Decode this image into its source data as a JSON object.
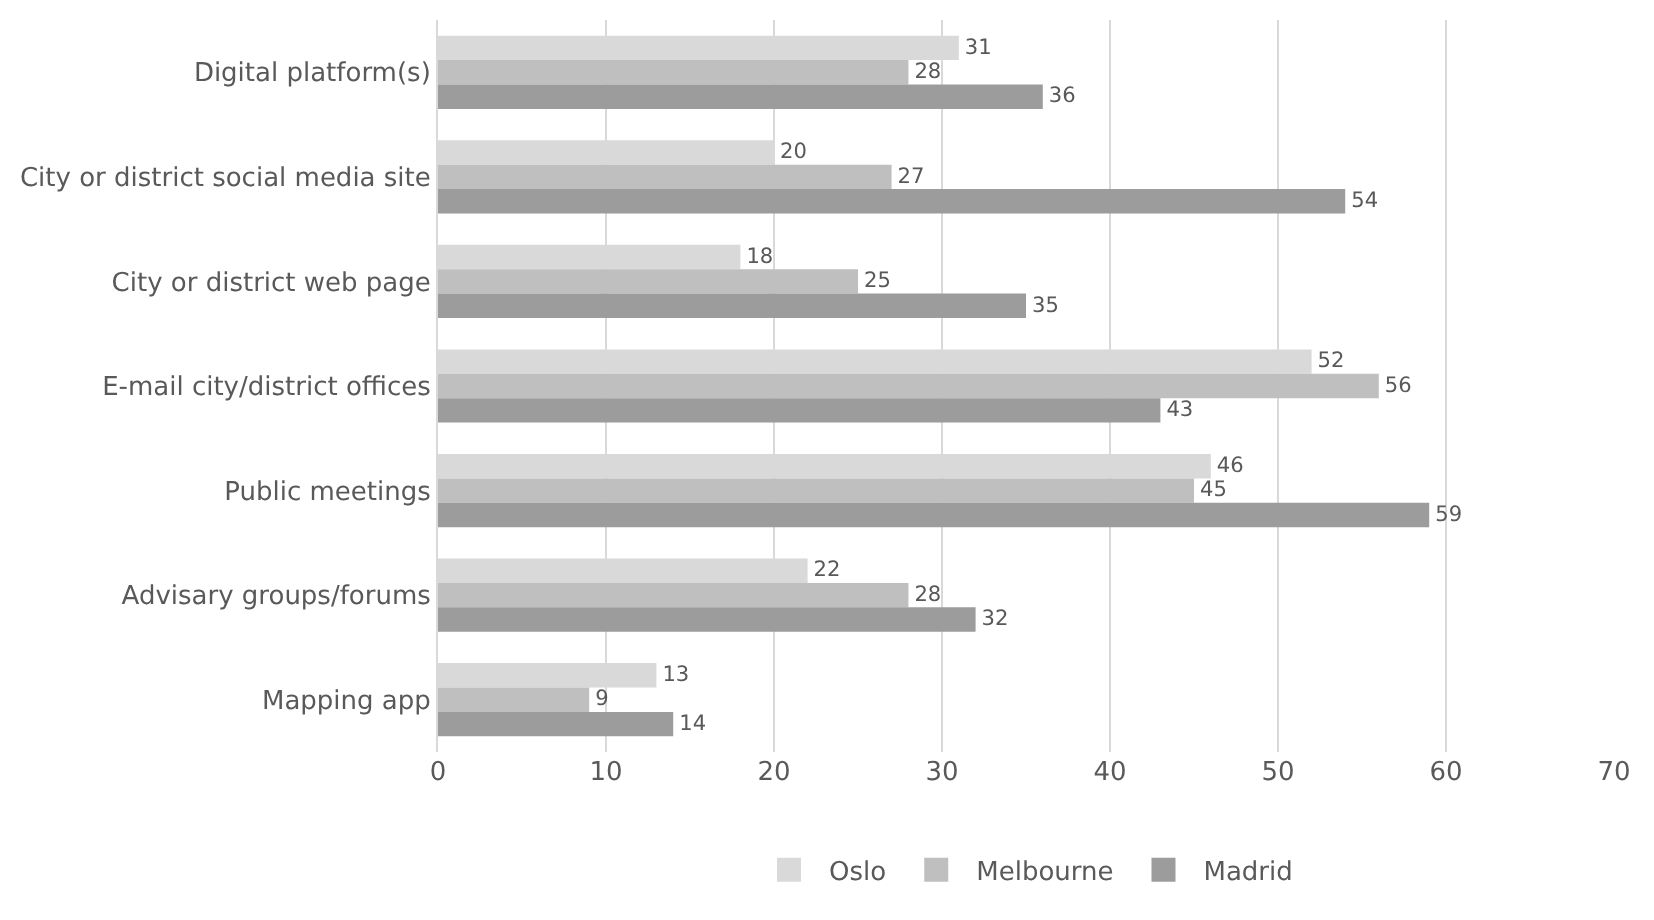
{
  "chart_data": {
    "type": "bar",
    "orientation": "horizontal",
    "categories": [
      "Digital platform(s)",
      "City or district social media site",
      "City or district web page",
      "E-mail city/district offices",
      "Public meetings",
      "Advisary groups/forums",
      "Mapping app"
    ],
    "series": [
      {
        "name": "Oslo",
        "color": "#d9d9d9",
        "values": [
          31,
          20,
          18,
          52,
          46,
          22,
          13
        ]
      },
      {
        "name": "Melbourne",
        "color": "#bfbfbf",
        "values": [
          28,
          27,
          25,
          56,
          45,
          28,
          9
        ]
      },
      {
        "name": "Madrid",
        "color": "#9c9c9c",
        "values": [
          36,
          54,
          35,
          43,
          59,
          32,
          14
        ]
      }
    ],
    "xlim": [
      0,
      70
    ],
    "xticks": [
      0,
      10,
      20,
      30,
      40,
      50,
      60,
      70
    ],
    "grid": "x",
    "legend": "bottom",
    "data_labels": true
  }
}
